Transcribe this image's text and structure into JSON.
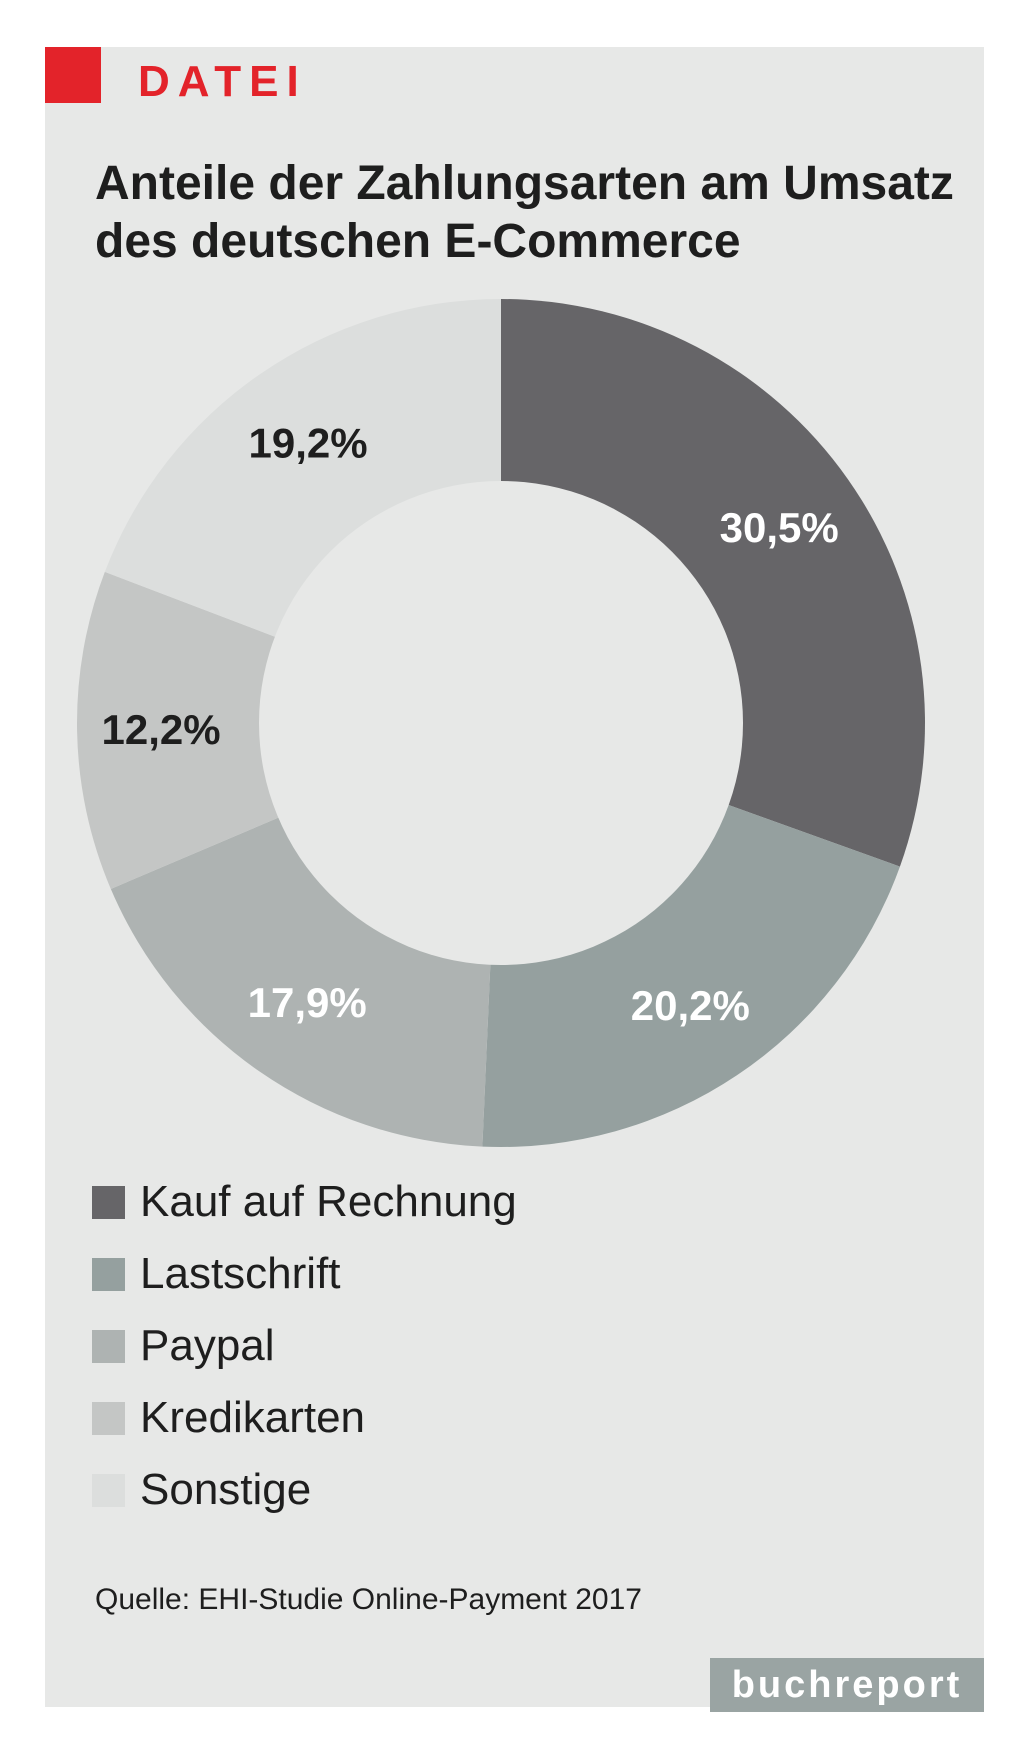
{
  "header": {
    "kicker": "DATEI",
    "title": "Anteile der Zahlungsarten am Umsatz des deutschen E-Commerce"
  },
  "chart_data": {
    "type": "pie",
    "variant": "donut",
    "title": "Anteile der Zahlungsarten am Umsatz des deutschen E-Commerce",
    "categories": [
      "Kauf auf Rechnung",
      "Lastschrift",
      "Paypal",
      "Kredikarten",
      "Sonstige"
    ],
    "values": [
      30.5,
      20.2,
      17.9,
      12.2,
      19.2
    ],
    "value_labels": [
      "30,5%",
      "20,2%",
      "17,9%",
      "12,2%",
      "19,2%"
    ],
    "unit": "%",
    "colors": [
      "#666568",
      "#95a09f",
      "#aeb3b2",
      "#c4c6c5",
      "#dcdedd"
    ],
    "label_colors": [
      "#ffffff",
      "#ffffff",
      "#ffffff",
      "#1e1e1e",
      "#1e1e1e"
    ],
    "start_angle_deg": 0,
    "direction": "clockwise",
    "legend_position": "bottom"
  },
  "source": {
    "text": "Quelle: EHI-Studie Online-Payment 2017"
  },
  "brand": {
    "name": "buchreport"
  },
  "colors": {
    "accent": "#e3232a",
    "panel_background": "#e7e8e7",
    "brand_background": "#9aa4a3"
  }
}
